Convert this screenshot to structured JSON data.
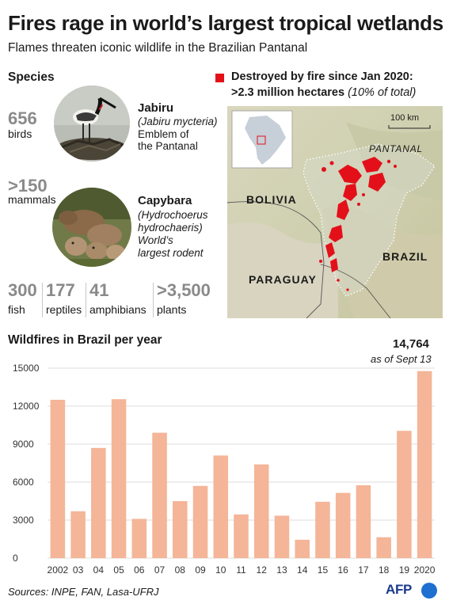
{
  "title": "Fires rage in world’s largest tropical wetlands",
  "subtitle": "Flames threaten iconic wildlife in the Brazilian Pantanal",
  "species": {
    "heading": "Species",
    "birds": {
      "count": "656",
      "label": "birds"
    },
    "mammals": {
      "count": ">150",
      "label": "mammals"
    },
    "jabiru": {
      "name": "Jabiru",
      "latin": "(Jabiru mycteria)",
      "desc_1": "Emblem of",
      "desc_2": "the Pantanal"
    },
    "capybara": {
      "name": "Capybara",
      "latin_1": "(Hydrochoerus",
      "latin_2": "hydrochaeris)",
      "desc_1": "World’s",
      "desc_2": "largest rodent"
    },
    "others": [
      {
        "count": "300",
        "label": "fish"
      },
      {
        "count": "177",
        "label": "reptiles"
      },
      {
        "count": "41",
        "label": "amphibians"
      },
      {
        "count": ">3,500",
        "label": "plants"
      }
    ]
  },
  "map": {
    "legend_line1": "Destroyed by fire since Jan 2020:",
    "legend_line2": ">2.3 million hectares",
    "legend_note": "(10% of total)",
    "scale": "100 km",
    "region_label": "PANTANAL",
    "countries": [
      "BOLIVIA",
      "BRAZIL",
      "PARAGUAY"
    ],
    "fire_color": "#e3101a"
  },
  "chart_heading": "Wildfires in Brazil per year",
  "annotation": {
    "value": "14,764",
    "note": "as of Sept 13"
  },
  "chart_data": {
    "type": "bar",
    "title": "Wildfires in Brazil per year",
    "categories": [
      "2002",
      "03",
      "04",
      "05",
      "06",
      "07",
      "08",
      "09",
      "10",
      "11",
      "12",
      "13",
      "14",
      "15",
      "16",
      "17",
      "18",
      "19",
      "2020"
    ],
    "values": [
      12500,
      3700,
      8700,
      12550,
      3100,
      9900,
      4500,
      5700,
      8100,
      3450,
      7400,
      3350,
      1450,
      4450,
      5150,
      5750,
      1650,
      10050,
      14764
    ],
    "ylim": [
      0,
      15000
    ],
    "yticks": [
      0,
      3000,
      6000,
      9000,
      12000,
      15000
    ],
    "bar_color": "#f4b598",
    "grid": true,
    "gridline_color": "#dcdcdc"
  },
  "sources": "Sources: INPE, FAN, Lasa-UFRJ",
  "logo": "AFP"
}
